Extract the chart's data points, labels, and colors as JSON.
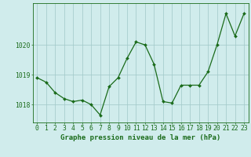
{
  "x": [
    0,
    1,
    2,
    3,
    4,
    5,
    6,
    7,
    8,
    9,
    10,
    11,
    12,
    13,
    14,
    15,
    16,
    17,
    18,
    19,
    20,
    21,
    22,
    23
  ],
  "y": [
    1018.9,
    1018.75,
    1018.4,
    1018.2,
    1018.1,
    1018.15,
    1018.0,
    1017.65,
    1018.6,
    1018.9,
    1019.55,
    1020.1,
    1020.0,
    1019.35,
    1018.1,
    1018.05,
    1018.65,
    1018.65,
    1018.65,
    1019.1,
    1020.0,
    1021.05,
    1020.3,
    1021.05
  ],
  "line_color": "#1a6b1a",
  "marker_color": "#1a6b1a",
  "bg_color": "#d0ecec",
  "grid_color": "#a0c8c8",
  "axis_color": "#1a6b1a",
  "xlabel": "Graphe pression niveau de la mer (hPa)",
  "xlabel_fontsize": 6.5,
  "tick_fontsize": 5.8,
  "ylim": [
    1017.4,
    1021.4
  ],
  "yticks": [
    1018,
    1019,
    1020
  ],
  "xticks": [
    0,
    1,
    2,
    3,
    4,
    5,
    6,
    7,
    8,
    9,
    10,
    11,
    12,
    13,
    14,
    15,
    16,
    17,
    18,
    19,
    20,
    21,
    22,
    23
  ]
}
